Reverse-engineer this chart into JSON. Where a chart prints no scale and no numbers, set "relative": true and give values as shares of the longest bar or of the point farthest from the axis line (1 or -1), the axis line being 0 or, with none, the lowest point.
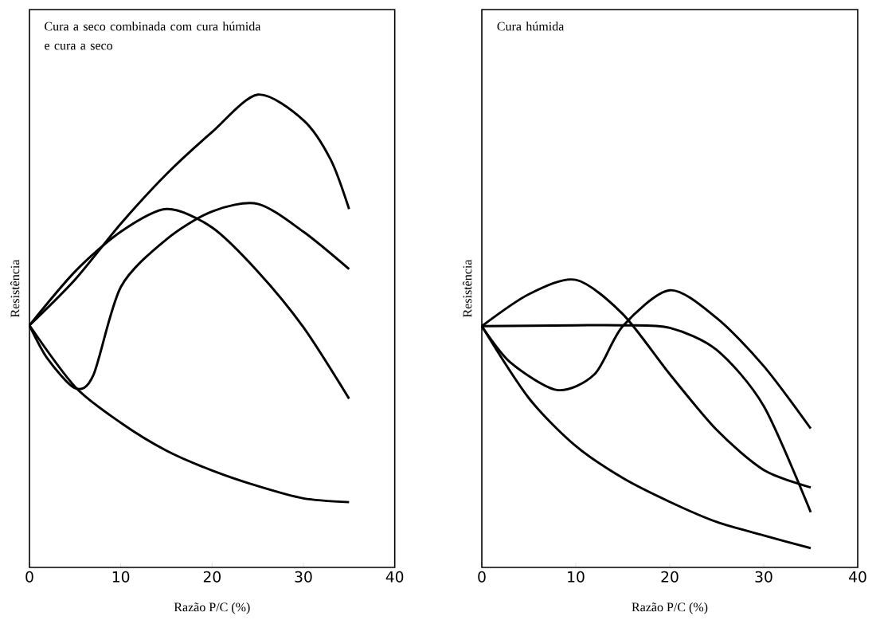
{
  "chart_data": [
    {
      "type": "line",
      "title": "Cura a seco combinada com cura húmida e cura a seco",
      "xlabel": "Razão P/C (%)",
      "ylabel": "Resistência",
      "relative": true,
      "xlim": [
        0,
        40
      ],
      "xticks": [
        0,
        10,
        20,
        30,
        40
      ],
      "tick_labels": "x",
      "series": [
        {
          "color": "#000000",
          "x": [
            0,
            5,
            10,
            15,
            20,
            25,
            30,
            33,
            35
          ],
          "values": [
            0.512,
            0.609,
            0.727,
            0.832,
            0.921,
            1,
            0.946,
            0.862,
            0.758
          ]
        },
        {
          "color": "#000000",
          "x": [
            0,
            5,
            10,
            15,
            20,
            25,
            30,
            35
          ],
          "values": [
            0.512,
            0.626,
            0.71,
            0.758,
            0.719,
            0.626,
            0.508,
            0.357
          ]
        },
        {
          "color": "#000000",
          "x": [
            0,
            2,
            5,
            7,
            10,
            15,
            20,
            25,
            30,
            35
          ],
          "values": [
            0.512,
            0.441,
            0.379,
            0.407,
            0.593,
            0.694,
            0.753,
            0.769,
            0.71,
            0.631
          ]
        },
        {
          "color": "#000000",
          "x": [
            0,
            5,
            10,
            15,
            20,
            25,
            30,
            35
          ],
          "values": [
            0.512,
            0.382,
            0.306,
            0.247,
            0.205,
            0.172,
            0.146,
            0.138
          ]
        }
      ]
    },
    {
      "type": "line",
      "title": "Cura húmida",
      "xlabel": "Razão P/C (%)",
      "ylabel": "Resistência",
      "relative": true,
      "xlim": [
        0,
        40
      ],
      "xticks": [
        0,
        10,
        20,
        30,
        40
      ],
      "tick_labels": "x",
      "series": [
        {
          "color": "#000000",
          "x": [
            0,
            5,
            10,
            15,
            20,
            25,
            30,
            35
          ],
          "values": [
            0.839,
            0.95,
            1,
            0.881,
            0.672,
            0.478,
            0.339,
            0.278
          ]
        },
        {
          "color": "#000000",
          "x": [
            0,
            10,
            15,
            20,
            25,
            30,
            35
          ],
          "values": [
            0.839,
            0.842,
            0.842,
            0.833,
            0.756,
            0.561,
            0.192
          ]
        },
        {
          "color": "#000000",
          "x": [
            0,
            3,
            8,
            12,
            15,
            20,
            25,
            30,
            35
          ],
          "values": [
            0.839,
            0.714,
            0.617,
            0.672,
            0.839,
            0.964,
            0.867,
            0.7,
            0.483
          ]
        },
        {
          "color": "#000000",
          "x": [
            0,
            5,
            10,
            15,
            20,
            25,
            30,
            35
          ],
          "values": [
            0.839,
            0.589,
            0.422,
            0.311,
            0.228,
            0.158,
            0.111,
            0.067
          ]
        }
      ]
    }
  ]
}
